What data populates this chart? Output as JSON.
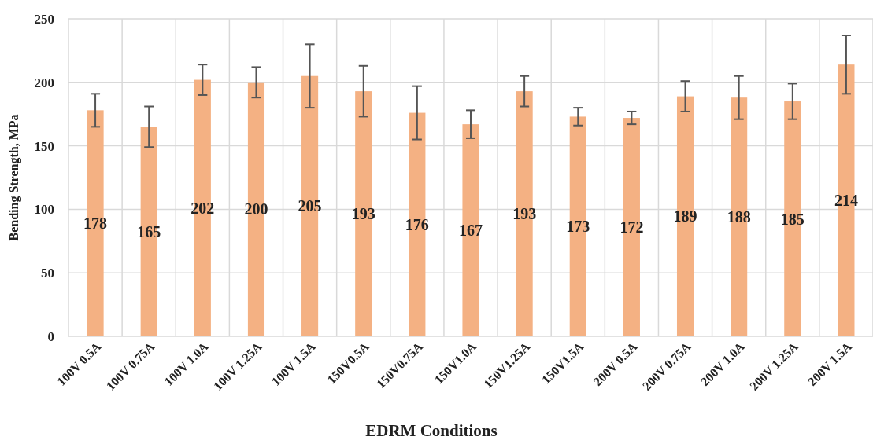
{
  "chart_data": {
    "type": "bar",
    "xlabel": "EDRM Conditions",
    "ylabel": "Bending Strength, MPa",
    "categories": [
      "100V 0.5A",
      "100V 0.75A",
      "100V 1.0A",
      "100V 1.25A",
      "100V 1.5A",
      "150V0.5A",
      "150V0.75A",
      "150V1.0A",
      "150V1.25A",
      "150V1.5A",
      "200V 0.5A",
      "200V 0.75A",
      "200V 1.0A",
      "200V 1.25A",
      "200V 1.5A"
    ],
    "values": [
      178,
      165,
      202,
      200,
      205,
      193,
      176,
      167,
      193,
      173,
      172,
      189,
      188,
      185,
      214
    ],
    "errors": [
      13,
      16,
      12,
      12,
      25,
      20,
      21,
      11,
      12,
      7,
      5,
      12,
      17,
      14,
      23
    ],
    "color": "#f4b183",
    "ylim": [
      0,
      250
    ],
    "yticks": [
      0,
      50,
      100,
      150,
      200,
      250
    ],
    "grid": true,
    "data_labels": true
  }
}
